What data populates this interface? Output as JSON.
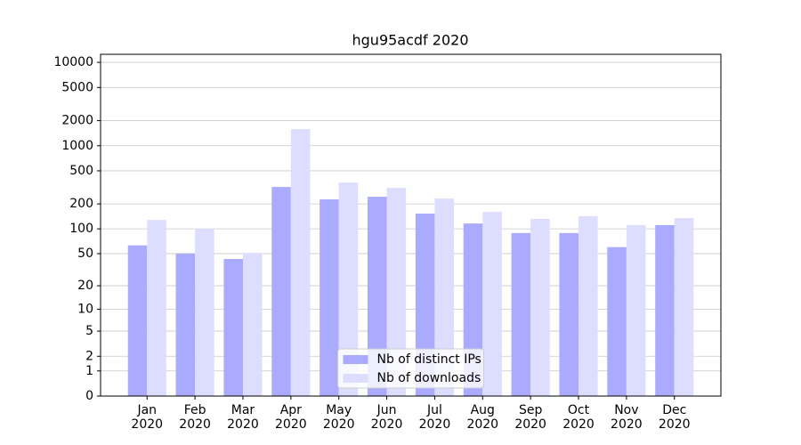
{
  "chart_data": {
    "type": "bar",
    "title": "hgu95acdf 2020",
    "categories": [
      "Jan\n2020",
      "Feb\n2020",
      "Mar\n2020",
      "Apr\n2020",
      "May\n2020",
      "Jun\n2020",
      "Jul\n2020",
      "Aug\n2020",
      "Sep\n2020",
      "Oct\n2020",
      "Nov\n2020",
      "Dec\n2020"
    ],
    "series": [
      {
        "name": "Nb of distinct IPs",
        "color": "#aaaaff",
        "values": [
          63,
          50,
          43,
          320,
          227,
          244,
          153,
          116,
          89,
          89,
          60,
          111
        ]
      },
      {
        "name": "Nb of downloads",
        "color": "#ddddff",
        "values": [
          128,
          100,
          51,
          1584,
          362,
          312,
          232,
          160,
          132,
          142,
          111,
          135
        ]
      }
    ],
    "yscale": "log1p",
    "ylim": [
      0,
      12500
    ],
    "yticks": [
      0,
      1,
      2,
      5,
      10,
      20,
      50,
      100,
      200,
      500,
      1000,
      2000,
      5000,
      10000
    ],
    "grid": true,
    "legend": "lower center"
  }
}
